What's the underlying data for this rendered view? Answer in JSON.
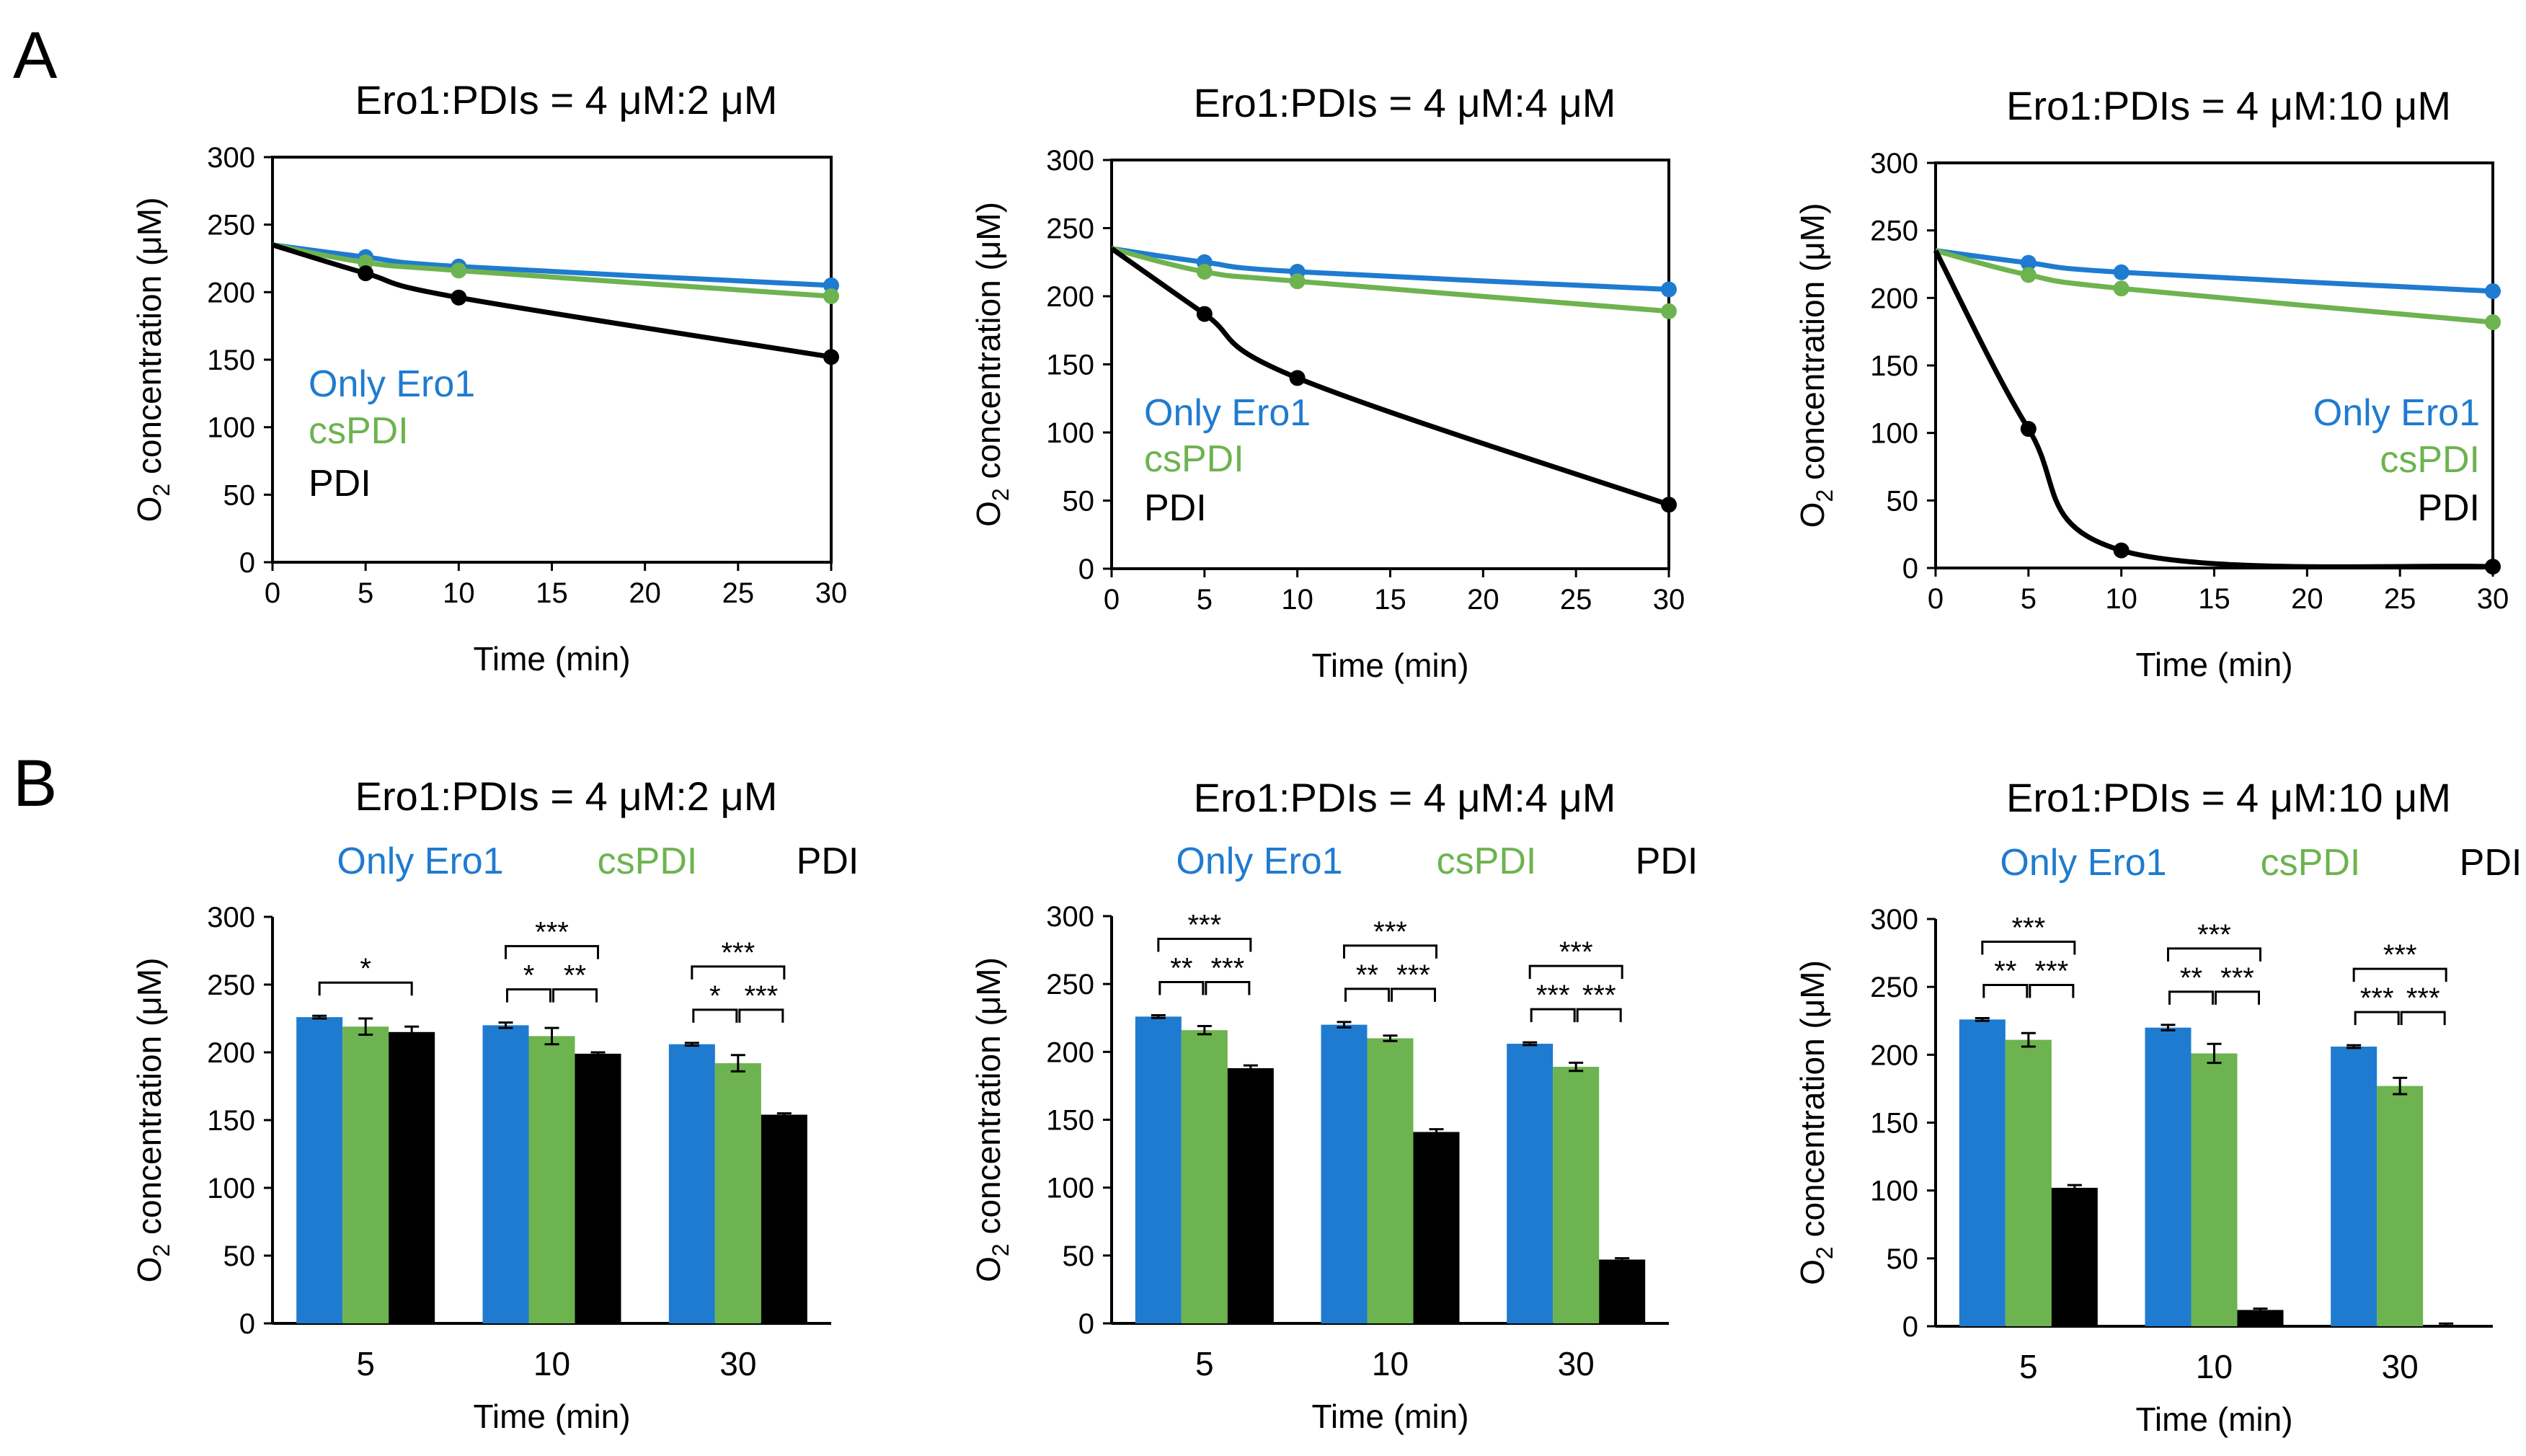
{
  "panel_labels": [
    "A",
    "B"
  ],
  "colors": {
    "only_ero1": "#1f7bd0",
    "cspdi": "#6db34f",
    "pdi": "#000000"
  },
  "chart_data": [
    {
      "type": "line",
      "panel": "A",
      "title": "Ero1:PDIs = 4 μM:2 μM",
      "xlabel": "Time (min)",
      "ylabel": "O2 concentration (μM)",
      "xlim": [
        0,
        30
      ],
      "ylim": [
        0,
        300
      ],
      "xticks": [
        0,
        5,
        10,
        15,
        20,
        25,
        30
      ],
      "yticks": [
        0,
        50,
        100,
        150,
        200,
        250,
        300
      ],
      "legend": [
        "Only Ero1",
        "csPDI",
        "PDI"
      ],
      "series": [
        {
          "name": "Only Ero1",
          "x": [
            0,
            5,
            10,
            30
          ],
          "y": [
            235,
            226,
            219,
            205
          ]
        },
        {
          "name": "csPDI",
          "x": [
            0,
            5,
            10,
            30
          ],
          "y": [
            235,
            222,
            216,
            197
          ]
        },
        {
          "name": "PDI",
          "x": [
            0,
            5,
            10,
            30
          ],
          "y": [
            235,
            214,
            196,
            152
          ]
        }
      ]
    },
    {
      "type": "line",
      "panel": "A",
      "title": "Ero1:PDIs = 4 μM:4 μM",
      "xlabel": "Time (min)",
      "ylabel": "O2 concentration (μM)",
      "xlim": [
        0,
        30
      ],
      "ylim": [
        0,
        300
      ],
      "xticks": [
        0,
        5,
        10,
        15,
        20,
        25,
        30
      ],
      "yticks": [
        0,
        50,
        100,
        150,
        200,
        250,
        300
      ],
      "legend": [
        "Only Ero1",
        "csPDI",
        "PDI"
      ],
      "series": [
        {
          "name": "Only Ero1",
          "x": [
            0,
            5,
            10,
            30
          ],
          "y": [
            235,
            225,
            218,
            205
          ]
        },
        {
          "name": "csPDI",
          "x": [
            0,
            5,
            10,
            30
          ],
          "y": [
            235,
            218,
            211,
            189
          ]
        },
        {
          "name": "PDI",
          "x": [
            0,
            5,
            10,
            30
          ],
          "y": [
            235,
            187,
            140,
            47
          ]
        }
      ]
    },
    {
      "type": "line",
      "panel": "A",
      "title": "Ero1:PDIs = 4 μM:10 μM",
      "xlabel": "Time (min)",
      "ylabel": "O2 concentration (μM)",
      "xlim": [
        0,
        30
      ],
      "ylim": [
        0,
        300
      ],
      "xticks": [
        0,
        5,
        10,
        15,
        20,
        25,
        30
      ],
      "yticks": [
        0,
        50,
        100,
        150,
        200,
        250,
        300
      ],
      "legend": [
        "Only Ero1",
        "csPDI",
        "PDI"
      ],
      "series": [
        {
          "name": "Only Ero1",
          "x": [
            0,
            5,
            10,
            30
          ],
          "y": [
            235,
            226,
            219,
            205
          ]
        },
        {
          "name": "csPDI",
          "x": [
            0,
            5,
            10,
            30
          ],
          "y": [
            235,
            217,
            207,
            182
          ]
        },
        {
          "name": "PDI",
          "x": [
            0,
            5,
            10,
            30
          ],
          "y": [
            235,
            103,
            13,
            1
          ]
        }
      ]
    },
    {
      "type": "bar",
      "panel": "B",
      "title": "Ero1:PDIs = 4 μM:2 μM",
      "xlabel": "Time (min)",
      "ylabel": "O2 concentration (μM)",
      "ylim": [
        0,
        300
      ],
      "yticks": [
        0,
        50,
        100,
        150,
        200,
        250,
        300
      ],
      "categories": [
        "5",
        "10",
        "30"
      ],
      "legend": [
        "Only Ero1",
        "csPDI",
        "PDI"
      ],
      "series": [
        {
          "name": "Only Ero1",
          "values": [
            226,
            220,
            206
          ],
          "errors": [
            1,
            2,
            1
          ]
        },
        {
          "name": "csPDI",
          "values": [
            219,
            212,
            192
          ],
          "errors": [
            6,
            6,
            6
          ]
        },
        {
          "name": "PDI",
          "values": [
            215,
            199,
            154
          ],
          "errors": [
            4,
            1,
            1
          ]
        }
      ],
      "significance": [
        {
          "group": 0,
          "from": 0,
          "to": 2,
          "level": 0,
          "label": "*"
        },
        {
          "group": 1,
          "from": 0,
          "to": 1,
          "level": 0,
          "label": "*"
        },
        {
          "group": 1,
          "from": 1,
          "to": 2,
          "level": 0,
          "label": "**"
        },
        {
          "group": 1,
          "from": 0,
          "to": 2,
          "level": 1,
          "label": "***"
        },
        {
          "group": 2,
          "from": 0,
          "to": 1,
          "level": 0,
          "label": "*"
        },
        {
          "group": 2,
          "from": 1,
          "to": 2,
          "level": 0,
          "label": "***"
        },
        {
          "group": 2,
          "from": 0,
          "to": 2,
          "level": 1,
          "label": "***"
        }
      ]
    },
    {
      "type": "bar",
      "panel": "B",
      "title": "Ero1:PDIs = 4 μM:4 μM",
      "xlabel": "Time (min)",
      "ylabel": "O2 concentration (μM)",
      "ylim": [
        0,
        300
      ],
      "yticks": [
        0,
        50,
        100,
        150,
        200,
        250,
        300
      ],
      "categories": [
        "5",
        "10",
        "30"
      ],
      "legend": [
        "Only Ero1",
        "csPDI",
        "PDI"
      ],
      "series": [
        {
          "name": "Only Ero1",
          "values": [
            226,
            220,
            206
          ],
          "errors": [
            1,
            2,
            1
          ]
        },
        {
          "name": "csPDI",
          "values": [
            216,
            210,
            189
          ],
          "errors": [
            3,
            2,
            3
          ]
        },
        {
          "name": "PDI",
          "values": [
            188,
            141,
            47
          ],
          "errors": [
            2,
            2,
            1
          ]
        }
      ],
      "significance": [
        {
          "group": 0,
          "from": 0,
          "to": 1,
          "level": 0,
          "label": "**"
        },
        {
          "group": 0,
          "from": 1,
          "to": 2,
          "level": 0,
          "label": "***"
        },
        {
          "group": 0,
          "from": 0,
          "to": 2,
          "level": 1,
          "label": "***"
        },
        {
          "group": 1,
          "from": 0,
          "to": 1,
          "level": 0,
          "label": "**"
        },
        {
          "group": 1,
          "from": 1,
          "to": 2,
          "level": 0,
          "label": "***"
        },
        {
          "group": 1,
          "from": 0,
          "to": 2,
          "level": 1,
          "label": "***"
        },
        {
          "group": 2,
          "from": 0,
          "to": 1,
          "level": 0,
          "label": "***"
        },
        {
          "group": 2,
          "from": 1,
          "to": 2,
          "level": 0,
          "label": "***"
        },
        {
          "group": 2,
          "from": 0,
          "to": 2,
          "level": 1,
          "label": "***"
        }
      ]
    },
    {
      "type": "bar",
      "panel": "B",
      "title": "Ero1:PDIs = 4 μM:10 μM",
      "xlabel": "Time (min)",
      "ylabel": "O2 concentration (μM)",
      "ylim": [
        0,
        300
      ],
      "yticks": [
        0,
        50,
        100,
        150,
        200,
        250,
        300
      ],
      "categories": [
        "5",
        "10",
        "30"
      ],
      "legend": [
        "Only Ero1",
        "csPDI",
        "PDI"
      ],
      "series": [
        {
          "name": "Only Ero1",
          "values": [
            226,
            220,
            206
          ],
          "errors": [
            1,
            2,
            1
          ]
        },
        {
          "name": "csPDI",
          "values": [
            211,
            201,
            177
          ],
          "errors": [
            5,
            7,
            6
          ]
        },
        {
          "name": "PDI",
          "values": [
            102,
            12,
            1
          ],
          "errors": [
            2,
            1,
            1
          ]
        }
      ],
      "significance": [
        {
          "group": 0,
          "from": 0,
          "to": 1,
          "level": 0,
          "label": "**"
        },
        {
          "group": 0,
          "from": 1,
          "to": 2,
          "level": 0,
          "label": "***"
        },
        {
          "group": 0,
          "from": 0,
          "to": 2,
          "level": 1,
          "label": "***"
        },
        {
          "group": 1,
          "from": 0,
          "to": 1,
          "level": 0,
          "label": "**"
        },
        {
          "group": 1,
          "from": 1,
          "to": 2,
          "level": 0,
          "label": "***"
        },
        {
          "group": 1,
          "from": 0,
          "to": 2,
          "level": 1,
          "label": "***"
        },
        {
          "group": 2,
          "from": 0,
          "to": 1,
          "level": 0,
          "label": "***"
        },
        {
          "group": 2,
          "from": 1,
          "to": 2,
          "level": 0,
          "label": "***"
        },
        {
          "group": 2,
          "from": 0,
          "to": 2,
          "level": 1,
          "label": "***"
        }
      ]
    }
  ]
}
